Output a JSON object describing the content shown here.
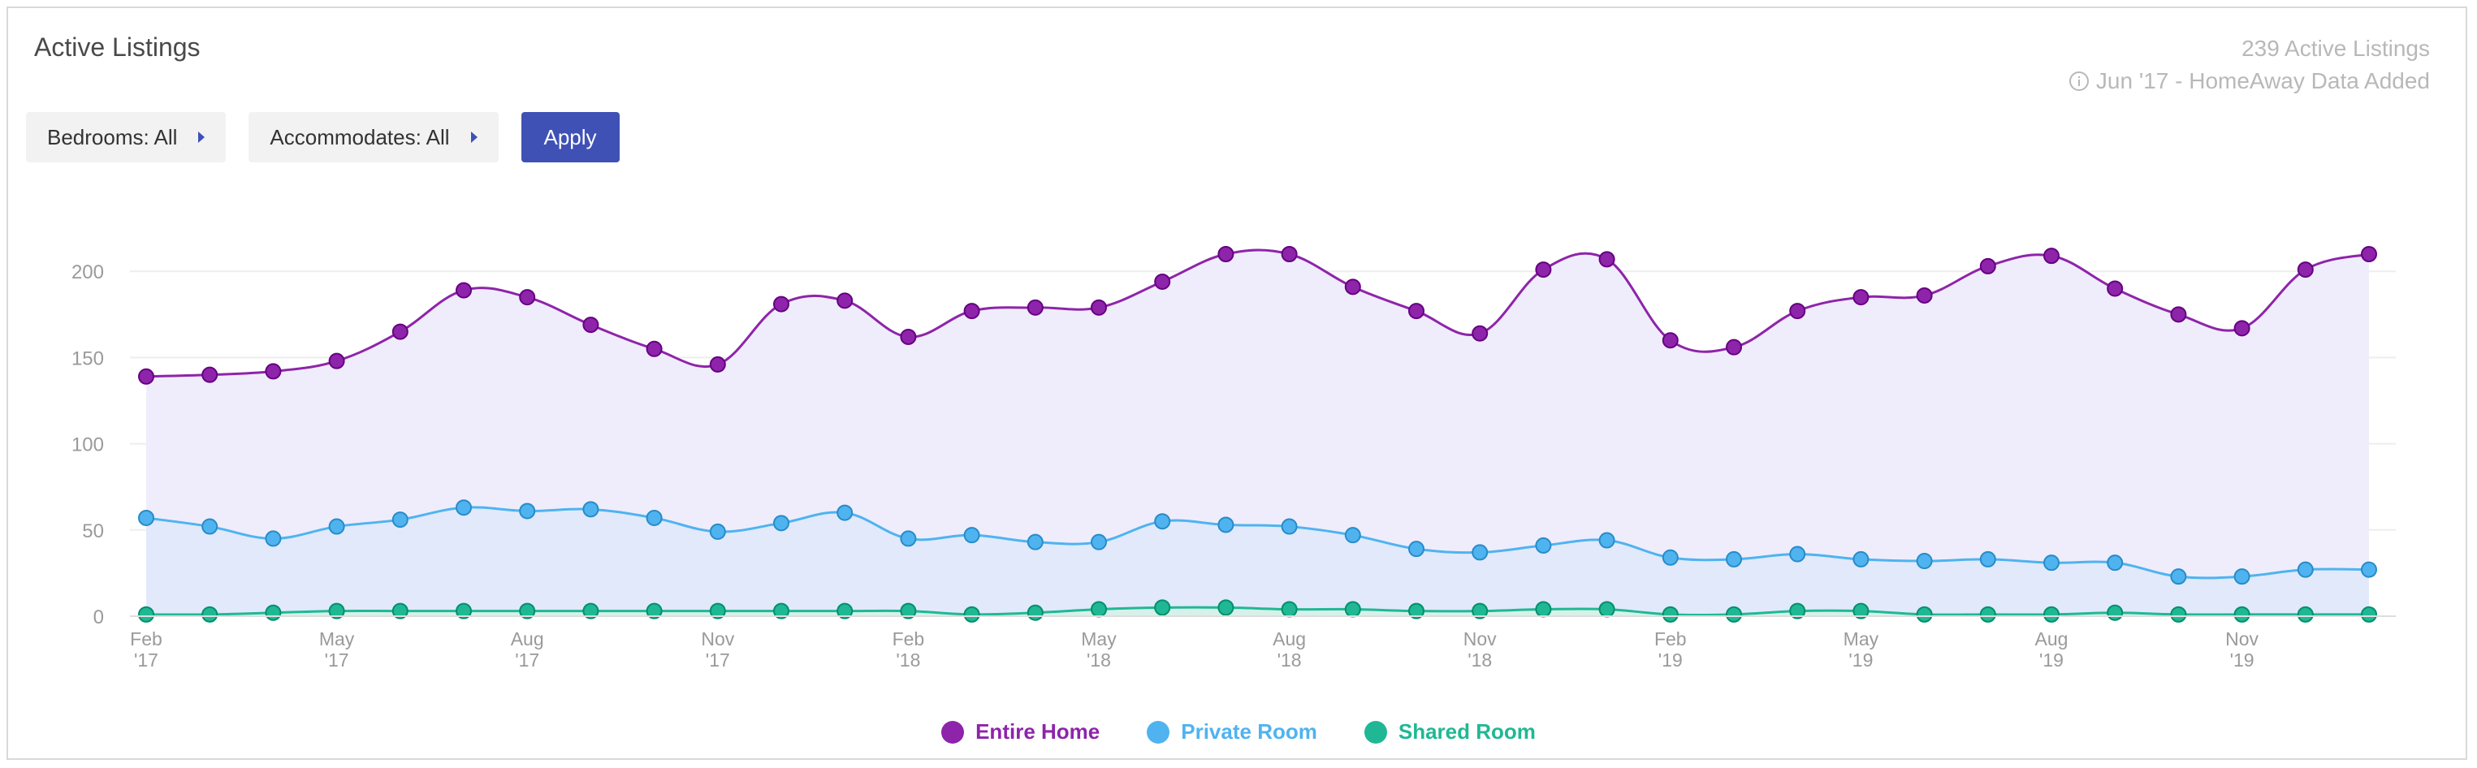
{
  "header": {
    "title": "Active Listings",
    "active_count": "239 Active Listings",
    "data_note": "Jun '17 - HomeAway Data Added"
  },
  "filters": {
    "bedrooms_label": "Bedrooms: All",
    "accommodates_label": "Accommodates: All",
    "apply_label": "Apply"
  },
  "colors": {
    "entire_home": "#8e24aa",
    "private_room": "#4fb3f0",
    "shared_room": "#20b894",
    "accent": "#3f51b5"
  },
  "chart_data": {
    "type": "area",
    "ylim": [
      0,
      210
    ],
    "yticks": [
      0,
      50,
      100,
      150,
      200
    ],
    "grid": true,
    "legend_position": "bottom-center",
    "x": [
      "Feb '17",
      "Mar '17",
      "Apr '17",
      "May '17",
      "Jun '17",
      "Jul '17",
      "Aug '17",
      "Sep '17",
      "Oct '17",
      "Nov '17",
      "Dec '17",
      "Jan '18",
      "Feb '18",
      "Mar '18",
      "Apr '18",
      "May '18",
      "Jun '18",
      "Jul '18",
      "Aug '18",
      "Sep '18",
      "Oct '18",
      "Nov '18",
      "Dec '18",
      "Jan '19",
      "Feb '19",
      "Mar '19",
      "Apr '19",
      "May '19",
      "Jun '19",
      "Jul '19",
      "Aug '19",
      "Sep '19",
      "Oct '19",
      "Nov '19",
      "Dec '19",
      "Jan '20"
    ],
    "xtick_labels": [
      {
        "index": 0,
        "month": "Feb",
        "year": "'17"
      },
      {
        "index": 3,
        "month": "May",
        "year": "'17"
      },
      {
        "index": 6,
        "month": "Aug",
        "year": "'17"
      },
      {
        "index": 9,
        "month": "Nov",
        "year": "'17"
      },
      {
        "index": 12,
        "month": "Feb",
        "year": "'18"
      },
      {
        "index": 15,
        "month": "May",
        "year": "'18"
      },
      {
        "index": 18,
        "month": "Aug",
        "year": "'18"
      },
      {
        "index": 21,
        "month": "Nov",
        "year": "'18"
      },
      {
        "index": 24,
        "month": "Feb",
        "year": "'19"
      },
      {
        "index": 27,
        "month": "May",
        "year": "'19"
      },
      {
        "index": 30,
        "month": "Aug",
        "year": "'19"
      },
      {
        "index": 33,
        "month": "Nov",
        "year": "'19"
      }
    ],
    "series": [
      {
        "name": "Entire Home",
        "color": "#8e24aa",
        "fill": "#efedfb",
        "values": [
          139,
          140,
          142,
          148,
          165,
          189,
          185,
          169,
          155,
          146,
          181,
          183,
          162,
          177,
          179,
          179,
          194,
          210,
          210,
          191,
          177,
          164,
          201,
          207,
          160,
          156,
          177,
          185,
          186,
          203,
          209,
          190,
          175,
          167,
          201,
          210
        ]
      },
      {
        "name": "Private Room",
        "color": "#4fb3f0",
        "fill": "#e1e9fb",
        "values": [
          57,
          52,
          45,
          52,
          56,
          63,
          61,
          62,
          57,
          49,
          54,
          60,
          45,
          47,
          43,
          43,
          55,
          53,
          52,
          47,
          39,
          37,
          41,
          44,
          34,
          33,
          36,
          33,
          32,
          33,
          31,
          31,
          23,
          23,
          27,
          27
        ]
      },
      {
        "name": "Shared Room",
        "color": "#20b894",
        "fill": "#d7f1e9",
        "values": [
          1,
          1,
          2,
          3,
          3,
          3,
          3,
          3,
          3,
          3,
          3,
          3,
          3,
          1,
          2,
          4,
          5,
          5,
          4,
          4,
          3,
          3,
          4,
          4,
          1,
          1,
          3,
          3,
          1,
          1,
          1,
          2,
          1,
          1,
          1,
          1
        ]
      }
    ]
  }
}
